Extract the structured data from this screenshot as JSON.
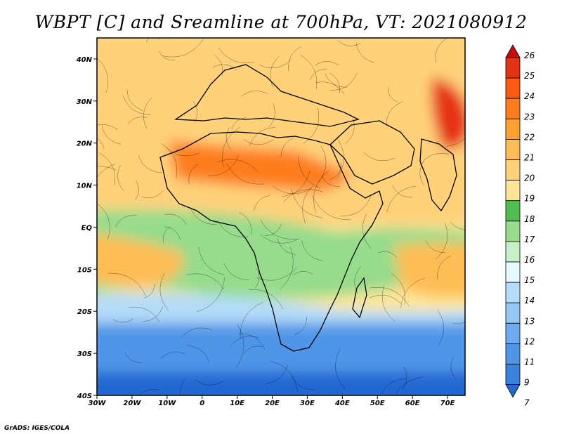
{
  "title": "WBPT [C] and Sreamline at 700hPa, VT: 2021080912",
  "credit": "GrADS: IGES/COLA",
  "map": {
    "projection": "latlon",
    "lon_range": [
      -30,
      75
    ],
    "lat_range": [
      -40,
      45
    ],
    "lon_ticks": [
      "30W",
      "20W",
      "10W",
      "0",
      "10E",
      "20E",
      "30E",
      "40E",
      "50E",
      "60E",
      "70E"
    ],
    "lat_ticks": [
      "40S",
      "30S",
      "20S",
      "10S",
      "EQ",
      "10N",
      "20N",
      "30N",
      "40N"
    ]
  },
  "colorbar": {
    "levels": [
      "7",
      "9",
      "11",
      "12",
      "13",
      "14",
      "15",
      "16",
      "17",
      "18",
      "19",
      "20",
      "21",
      "22",
      "23",
      "24",
      "25",
      "26"
    ],
    "colors": [
      "#2468d2",
      "#3a82e0",
      "#5096e8",
      "#6eaaf0",
      "#96c8f5",
      "#b4dcf8",
      "#e6faff",
      "#c8f0c8",
      "#96dc8c",
      "#50be50",
      "#ffe696",
      "#ffd27a",
      "#ffbe55",
      "#ffa032",
      "#ff7d1e",
      "#ff5a14",
      "#e63214",
      "#c80a0a"
    ]
  },
  "field_regions": [
    {
      "name": "band-nh-warm",
      "level": "20"
    },
    {
      "name": "band-sahel-hot",
      "level": "23"
    },
    {
      "name": "band-arabia-hot",
      "level": "25"
    },
    {
      "name": "band-tropics-green",
      "level": "17"
    },
    {
      "name": "band-south-atlantic-orange",
      "level": "21"
    },
    {
      "name": "band-indian-orange",
      "level": "21"
    },
    {
      "name": "band-southern-cool",
      "level": "14"
    },
    {
      "name": "band-southern-blue",
      "level": "11"
    },
    {
      "name": "band-polar-blue",
      "level": "7"
    }
  ]
}
